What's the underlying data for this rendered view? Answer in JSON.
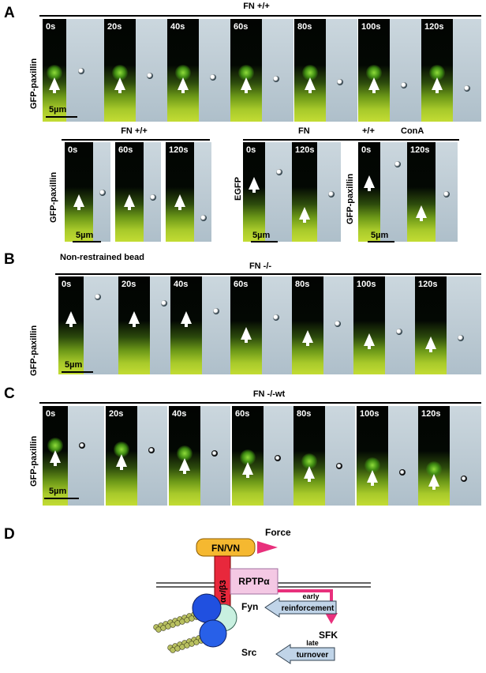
{
  "panels": {
    "A": "A",
    "B": "B",
    "C": "C",
    "D": "D"
  },
  "panel_a": {
    "header": "FN +/+",
    "row_label": "GFP-paxillin",
    "times": [
      "0s",
      "20s",
      "40s",
      "60s",
      "80s",
      "100s",
      "120s"
    ],
    "scale": "5µm",
    "sub1": {
      "header": "FN +/+",
      "row_label": "GFP-paxillin",
      "times": [
        "0s",
        "60s",
        "120s"
      ],
      "scale": "5µm"
    },
    "sub2": {
      "header_left": "FN",
      "header_mid": "+/+",
      "header_right": "ConA",
      "row_label_left": "EGFP",
      "row_label_right": "GFP-paxillin",
      "times_left": [
        "0s",
        "120s"
      ],
      "times_right": [
        "0s",
        "120s"
      ],
      "scale": "5µm"
    }
  },
  "panel_b": {
    "note": "Non-restrained bead",
    "header": "FN -/-",
    "row_label": "GFP-paxillin",
    "times": [
      "0s",
      "20s",
      "40s",
      "60s",
      "80s",
      "100s",
      "120s"
    ],
    "scale": "5µm"
  },
  "panel_c": {
    "header": "FN -/-wt",
    "row_label": "GFP-paxillin",
    "times": [
      "0s",
      "20s",
      "40s",
      "60s",
      "80s",
      "100s",
      "120s"
    ],
    "scale": "5µm"
  },
  "panel_d": {
    "ligand": "FN/VN",
    "force": "Force",
    "integrin": "αv/β3",
    "rptp": "RPTPα",
    "fyn": "Fyn",
    "src": "Src",
    "sfk": "SFK",
    "early": "early",
    "reinforcement": "reinforcement",
    "late": "late",
    "turnover": "turnover",
    "colors": {
      "ligand": "#f5b830",
      "integrin": "#e8283c",
      "rptp": "#f4c8e4",
      "arrow": "#e8307c",
      "blue": "#2050e0",
      "teal": "#c8f0e0",
      "chain": "#b8c060"
    }
  }
}
